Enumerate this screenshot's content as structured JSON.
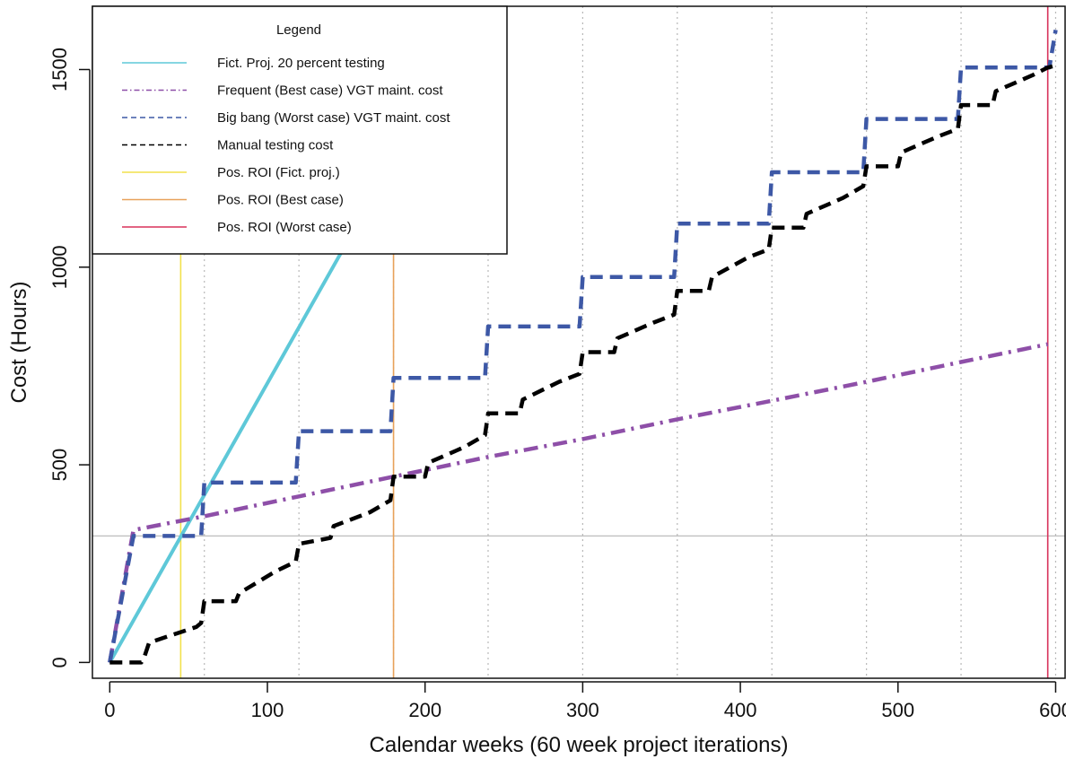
{
  "chart_data": {
    "type": "line",
    "xlabel": "Calendar weeks (60 week project iterations)",
    "ylabel": "Cost (Hours)",
    "xlim": [
      -11,
      606
    ],
    "ylim": [
      -40,
      1660
    ],
    "xticks": [
      "0",
      "100",
      "200",
      "300",
      "400",
      "500",
      "600"
    ],
    "xtick_values": [
      0,
      100,
      200,
      300,
      400,
      500,
      600
    ],
    "yticks": [
      "0",
      "500",
      "1000",
      "1500"
    ],
    "ytick_values": [
      0,
      500,
      1000,
      1500
    ],
    "vertical_gridlines_dotted": [
      60,
      120,
      180,
      240,
      300,
      360,
      420,
      480,
      540,
      600
    ],
    "horizontal_reference_line": 320,
    "legend": {
      "title": "Legend",
      "placement": "top-left",
      "entries": [
        {
          "label": "Fict. Proj. 20 percent testing",
          "color": "#5ec8d8",
          "style": "solid"
        },
        {
          "label": "Frequent (Best case) VGT maint. cost",
          "color": "#8e4fa8",
          "style": "dashdot"
        },
        {
          "label": "Big bang (Worst case) VGT maint. cost",
          "color": "#3d58a6",
          "style": "dashed"
        },
        {
          "label": "Manual testing cost",
          "color": "#000000",
          "style": "dashed"
        },
        {
          "label": "Pos. ROI (Fict. proj.)",
          "color": "#f2e14c",
          "style": "solid"
        },
        {
          "label": "Pos. ROI (Best case)",
          "color": "#e8a25a",
          "style": "solid"
        },
        {
          "label": "Pos. ROI (Worst case)",
          "color": "#d8325a",
          "style": "solid"
        }
      ]
    },
    "series": [
      {
        "name": "Fict. Proj. 20 percent testing",
        "color": "#5ec8d8",
        "x": [
          0,
          150
        ],
        "y": [
          0,
          1060
        ]
      },
      {
        "name": "Frequent (Best case) VGT maint. cost",
        "color": "#8e4fa8",
        "x": [
          0,
          15,
          60,
          120,
          180,
          240,
          300,
          360,
          420,
          480,
          540,
          595
        ],
        "y": [
          0,
          335,
          370,
          420,
          470,
          520,
          565,
          615,
          662,
          710,
          760,
          805
        ]
      },
      {
        "name": "Big bang (Worst case) VGT maint. cost",
        "color": "#3d58a6",
        "x": [
          0,
          15,
          58,
          60,
          118,
          120,
          178,
          180,
          238,
          240,
          298,
          300,
          358,
          360,
          418,
          420,
          478,
          480,
          538,
          540,
          596,
          600
        ],
        "y": [
          0,
          320,
          320,
          455,
          455,
          585,
          585,
          720,
          720,
          850,
          850,
          975,
          975,
          1110,
          1110,
          1240,
          1240,
          1375,
          1375,
          1505,
          1505,
          1600
        ]
      },
      {
        "name": "Manual testing cost",
        "color": "#000000",
        "x": [
          0,
          20,
          22,
          25,
          55,
          58,
          60,
          80,
          82,
          105,
          118,
          120,
          140,
          142,
          165,
          178,
          180,
          200,
          202,
          225,
          238,
          240,
          260,
          262,
          285,
          298,
          300,
          320,
          322,
          345,
          358,
          360,
          380,
          382,
          405,
          418,
          420,
          440,
          442,
          465,
          478,
          480,
          500,
          502,
          525,
          538,
          540,
          560,
          562,
          585,
          595,
          600
        ],
        "y": [
          0,
          0,
          15,
          50,
          90,
          100,
          155,
          155,
          175,
          230,
          255,
          300,
          315,
          345,
          380,
          410,
          470,
          470,
          505,
          545,
          575,
          630,
          630,
          665,
          710,
          730,
          785,
          785,
          820,
          860,
          880,
          940,
          940,
          975,
          1025,
          1045,
          1100,
          1100,
          1135,
          1175,
          1205,
          1255,
          1255,
          1290,
          1330,
          1350,
          1410,
          1410,
          1445,
          1485,
          1505,
          1510
        ]
      }
    ],
    "roi_markers": [
      {
        "name": "Pos. ROI (Fict. proj.)",
        "x": 45,
        "color": "#f2e14c"
      },
      {
        "name": "Pos. ROI (Best case)",
        "x": 180,
        "color": "#e8a25a"
      },
      {
        "name": "Pos. ROI (Worst case)",
        "x": 595,
        "color": "#d8325a"
      }
    ]
  }
}
